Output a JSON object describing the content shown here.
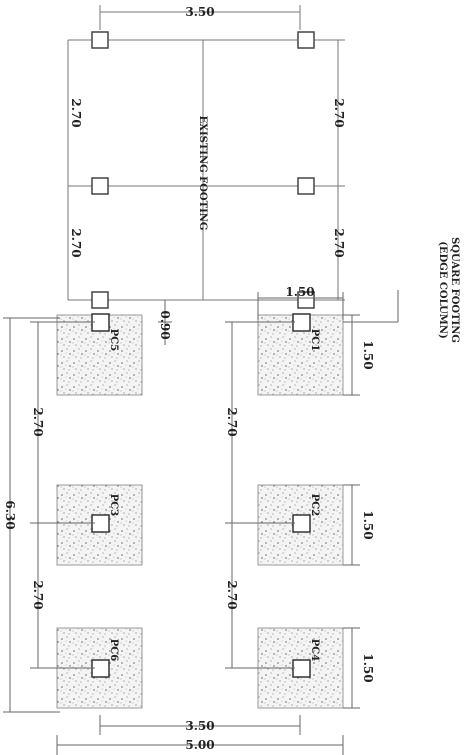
{
  "diagram": {
    "top_width_dim": "3.50",
    "top_left_dim_upper": "2.70",
    "top_left_dim_lower": "2.70",
    "top_right_dim_upper": "2.70",
    "top_right_dim_lower": "2.70",
    "existing_label": "EXISTING FOOTING",
    "square_label_line1": "SQUARE FOOTING",
    "square_label_line2": "(EDGE COLUMN)",
    "right_top_width_dim": "1.50",
    "right_side_dims": [
      "1.50",
      "1.50",
      "1.50"
    ],
    "right_spacing_dims": [
      "2.70",
      "2.70"
    ],
    "left_spacing_dims": [
      "2.70",
      "2.70"
    ],
    "left_overall_dim": "6.30",
    "gap_dim": "0.90",
    "bottom_inner_dim": "3.50",
    "bottom_overall_dim": "5.00",
    "footing_tags": [
      "PC1",
      "PC2",
      "PC3",
      "PC4",
      "PC5",
      "PC6"
    ]
  }
}
